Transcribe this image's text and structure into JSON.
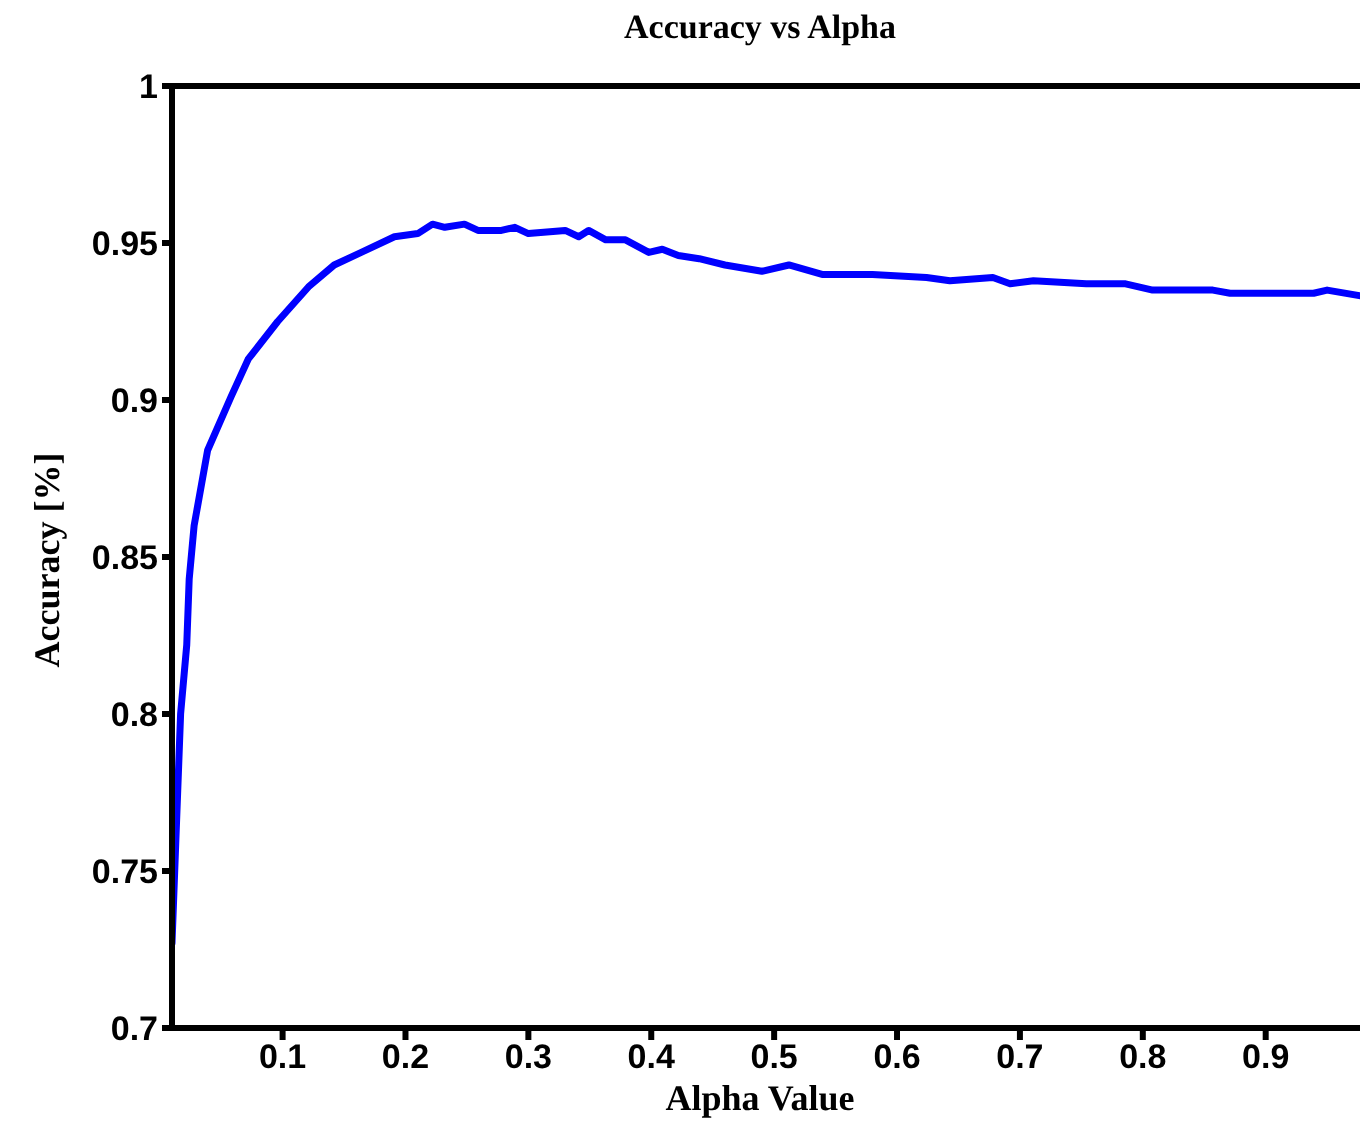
{
  "chart_data": {
    "type": "line",
    "title": "Accuracy vs Alpha",
    "xlabel": "Alpha Value",
    "ylabel": "Accuracy [%]",
    "x": [
      0.01,
      0.017,
      0.022,
      0.024,
      0.028,
      0.039,
      0.058,
      0.072,
      0.096,
      0.121,
      0.142,
      0.164,
      0.191,
      0.21,
      0.222,
      0.232,
      0.248,
      0.259,
      0.278,
      0.289,
      0.3,
      0.33,
      0.341,
      0.349,
      0.363,
      0.379,
      0.398,
      0.409,
      0.422,
      0.439,
      0.46,
      0.49,
      0.512,
      0.539,
      0.58,
      0.624,
      0.643,
      0.678,
      0.692,
      0.711,
      0.754,
      0.786,
      0.808,
      0.857,
      0.871,
      0.896,
      0.939,
      0.95,
      0.98
    ],
    "series": [
      {
        "color": "#0000ff",
        "values": [
          0.727,
          0.8,
          0.822,
          0.843,
          0.86,
          0.884,
          0.901,
          0.913,
          0.925,
          0.936,
          0.943,
          0.947,
          0.952,
          0.953,
          0.956,
          0.955,
          0.956,
          0.954,
          0.954,
          0.955,
          0.953,
          0.954,
          0.952,
          0.954,
          0.951,
          0.951,
          0.947,
          0.948,
          0.946,
          0.945,
          0.943,
          0.941,
          0.943,
          0.94,
          0.94,
          0.939,
          0.938,
          0.939,
          0.937,
          0.938,
          0.937,
          0.937,
          0.935,
          0.935,
          0.934,
          0.934,
          0.934,
          0.935,
          0.933
        ]
      }
    ],
    "xlim": [
      0.01,
      0.98
    ],
    "ylim": [
      0.7,
      1
    ],
    "xticks": [
      0.1,
      0.2,
      0.3,
      0.4,
      0.5,
      0.6,
      0.7,
      0.8,
      0.9
    ],
    "yticks": [
      0.7,
      0.75,
      0.8,
      0.85,
      0.9,
      0.95,
      1
    ],
    "grid": false,
    "marker": "none",
    "line_style": "solid"
  }
}
